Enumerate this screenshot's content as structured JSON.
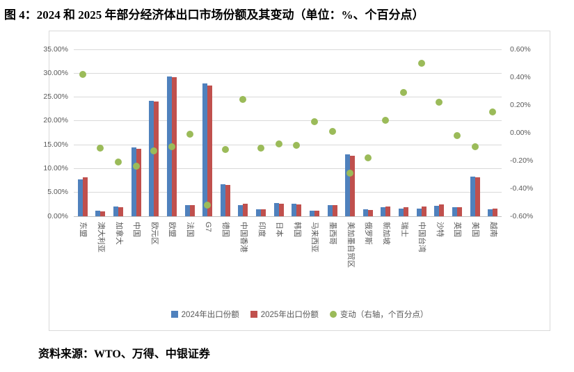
{
  "figure": {
    "title": "图 4：2024 和 2025 年部分经济体出口市场份额及其变动（单位：%、个百分点）",
    "source": "资料来源：WTO、万得、中银证券"
  },
  "chart_data": {
    "type": "bar",
    "overlay": "scatter",
    "title": "",
    "categories": [
      "东盟",
      "澳大利亚",
      "加拿大",
      "中国",
      "欧元区",
      "欧盟",
      "法国",
      "G7",
      "德国",
      "中国香港",
      "印度",
      "日本",
      "韩国",
      "马来西亚",
      "墨西哥",
      "美加墨自贸区",
      "俄罗斯",
      "新加坡",
      "瑞士",
      "中国台湾",
      "沙特",
      "英国",
      "美国",
      "越南"
    ],
    "series": [
      {
        "name": "2024年出口份额",
        "type": "bar",
        "axis": "left",
        "color": "#4f81bd",
        "values": [
          7.8,
          1.1,
          2.1,
          14.4,
          24.2,
          29.3,
          2.3,
          27.9,
          6.7,
          2.3,
          1.5,
          2.7,
          2.6,
          1.1,
          2.4,
          13.0,
          1.4,
          1.9,
          1.6,
          1.6,
          2.2,
          1.9,
          8.3,
          1.4
        ]
      },
      {
        "name": "2025年出口份额",
        "type": "bar",
        "axis": "left",
        "color": "#c0504d",
        "values": [
          8.2,
          1.0,
          1.9,
          14.2,
          24.0,
          29.2,
          2.3,
          27.4,
          6.5,
          2.6,
          1.4,
          2.6,
          2.5,
          1.2,
          2.4,
          12.7,
          1.3,
          2.0,
          1.9,
          2.1,
          2.5,
          1.9,
          8.2,
          1.6
        ]
      },
      {
        "name": "变动（右轴，个百分点）",
        "type": "scatter",
        "axis": "right",
        "color": "#9bbb59",
        "values": [
          0.42,
          -0.11,
          -0.21,
          -0.24,
          -0.13,
          -0.1,
          -0.01,
          -0.52,
          -0.12,
          0.24,
          -0.11,
          -0.08,
          -0.09,
          0.08,
          0.01,
          -0.29,
          -0.18,
          0.09,
          0.29,
          0.5,
          0.22,
          -0.02,
          -0.1,
          0.15
        ]
      }
    ],
    "left_axis": {
      "min": 0,
      "max": 35,
      "ticks": [
        "35.00%",
        "30.00%",
        "25.00%",
        "20.00%",
        "15.00%",
        "10.00%",
        "5.00%",
        "0.00%"
      ]
    },
    "right_axis": {
      "min": -0.6,
      "max": 0.6,
      "ticks": [
        "0.60%",
        "0.40%",
        "0.20%",
        "0.00%",
        "-0.20%",
        "-0.40%",
        "-0.60%"
      ]
    },
    "grid": true,
    "grid_color": "#d9d9d9",
    "legend_position": "bottom"
  }
}
